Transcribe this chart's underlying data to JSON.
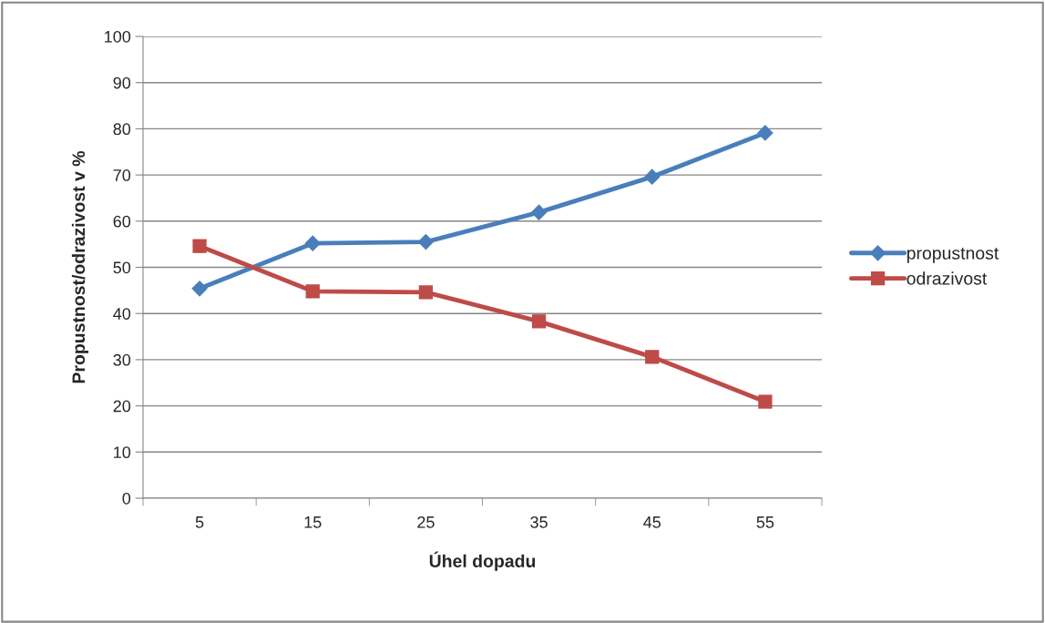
{
  "chart_data": {
    "type": "line",
    "xlabel": "Úhel dopadu",
    "ylabel": "Propustnost/odrazivost v %",
    "categories": [
      "5",
      "15",
      "25",
      "35",
      "45",
      "55"
    ],
    "series": [
      {
        "name": "propustnost",
        "color": "#4a7ebb",
        "marker": "diamond",
        "values": [
          45.4,
          55.2,
          55.5,
          61.9,
          69.6,
          79.1
        ]
      },
      {
        "name": "odrazivost",
        "color": "#be4b48",
        "marker": "square",
        "values": [
          54.6,
          44.8,
          44.6,
          38.3,
          30.6,
          20.9
        ]
      }
    ],
    "ylim": [
      0,
      100
    ],
    "yticks": [
      0,
      10,
      20,
      30,
      40,
      50,
      60,
      70,
      80,
      90,
      100
    ],
    "grid": "y",
    "legend": "right",
    "line_style": "solid"
  }
}
